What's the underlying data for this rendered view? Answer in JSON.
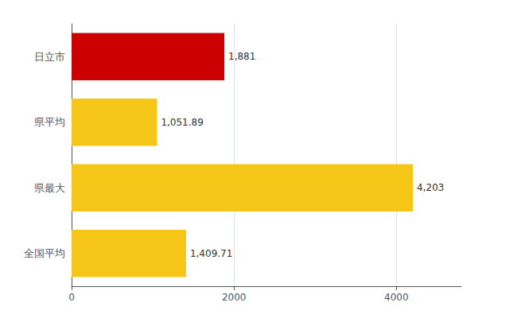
{
  "chart_data": {
    "type": "bar",
    "orientation": "horizontal",
    "categories": [
      "日立市",
      "県平均",
      "県最大",
      "全国平均"
    ],
    "values": [
      1881,
      1051.89,
      4203,
      1409.71
    ],
    "value_labels": [
      "1,881",
      "1,051.89",
      "4,203",
      "1,409.71"
    ],
    "colors": [
      "#cc0000",
      "#f5c518",
      "#f5c518",
      "#f5c518"
    ],
    "xlim": [
      0,
      4800
    ],
    "xticks": [
      0,
      2000,
      4000
    ],
    "grid": true,
    "data_labels": true
  }
}
